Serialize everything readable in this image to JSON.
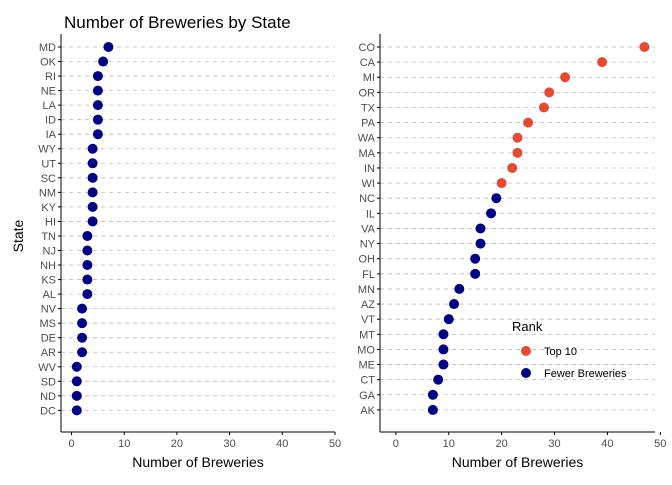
{
  "title": "Number of Breweries by State",
  "chart_data": [
    {
      "type": "scatter",
      "orientation": "horizontal-dot",
      "xlabel": "Number of Breweries",
      "ylabel": "State",
      "xlim": [
        -2,
        50
      ],
      "xticks": [
        0,
        10,
        20,
        30,
        40,
        50
      ],
      "grid": "dashed horizontal",
      "states": [
        "MD",
        "OK",
        "RI",
        "NE",
        "LA",
        "ID",
        "IA",
        "WY",
        "UT",
        "SC",
        "NM",
        "KY",
        "HI",
        "TN",
        "NJ",
        "NH",
        "KS",
        "AL",
        "NV",
        "MS",
        "DE",
        "AR",
        "WV",
        "SD",
        "ND",
        "DC"
      ],
      "values": [
        7,
        6,
        5,
        5,
        5,
        5,
        5,
        4,
        4,
        4,
        4,
        4,
        4,
        3,
        3,
        3,
        3,
        3,
        2,
        2,
        2,
        2,
        1,
        1,
        1,
        1
      ],
      "series": [
        {
          "name": "Fewer Breweries",
          "color": "#000080"
        }
      ]
    },
    {
      "type": "scatter",
      "orientation": "horizontal-dot",
      "xlabel": "Number of Breweries",
      "ylabel": "",
      "xlim": [
        -3,
        49
      ],
      "xticks": [
        0,
        10,
        20,
        30,
        40,
        50
      ],
      "grid": "dashed horizontal",
      "states": [
        "CO",
        "CA",
        "MI",
        "OR",
        "TX",
        "PA",
        "WA",
        "MA",
        "IN",
        "WI",
        "NC",
        "IL",
        "VA",
        "NY",
        "OH",
        "FL",
        "MN",
        "AZ",
        "VT",
        "MT",
        "MO",
        "ME",
        "CT",
        "GA",
        "AK"
      ],
      "values": [
        47,
        39,
        32,
        29,
        28,
        25,
        23,
        23,
        22,
        20,
        19,
        18,
        16,
        16,
        15,
        15,
        12,
        11,
        10,
        9,
        9,
        9,
        8,
        7,
        7
      ],
      "groups": [
        "Top 10",
        "Top 10",
        "Top 10",
        "Top 10",
        "Top 10",
        "Top 10",
        "Top 10",
        "Top 10",
        "Top 10",
        "Top 10",
        "Fewer Breweries",
        "Fewer Breweries",
        "Fewer Breweries",
        "Fewer Breweries",
        "Fewer Breweries",
        "Fewer Breweries",
        "Fewer Breweries",
        "Fewer Breweries",
        "Fewer Breweries",
        "Fewer Breweries",
        "Fewer Breweries",
        "Fewer Breweries",
        "Fewer Breweries",
        "Fewer Breweries",
        "Fewer Breweries"
      ]
    }
  ],
  "legend": {
    "title": "Rank",
    "placement": "bottom-right of right panel",
    "items": [
      {
        "label": "Top 10",
        "color": "#E34A33"
      },
      {
        "label": "Fewer Breweries",
        "color": "#000080"
      }
    ]
  },
  "colors": {
    "top10": "#E34A33",
    "fewer": "#000080",
    "grid": "#BBBBBB",
    "axis": "#000000",
    "text": "#4D4D4D"
  }
}
